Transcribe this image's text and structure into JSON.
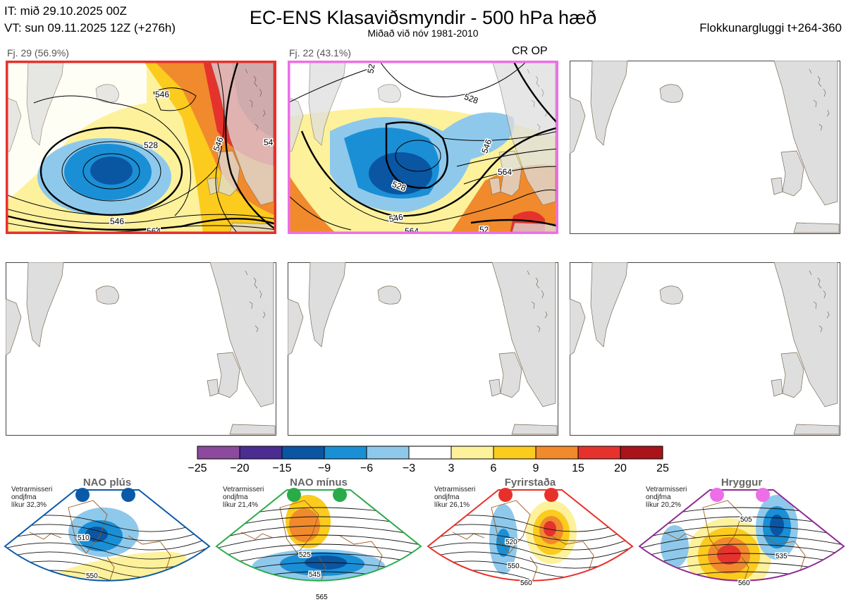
{
  "header": {
    "it": "IT: mið 29.10.2025 00Z",
    "vt": "VT: sun 09.11.2025 12Z  (+276h)",
    "title": "EC-ENS Klasaviðsmyndir - 500 hPa hæð",
    "subtitle": "Miðað við nóv 1981-2010",
    "window": "Flokkunargluggi t+264-360"
  },
  "clusters": [
    {
      "label": "Fj. 29 (56.9%)",
      "border_color": "#e8302a",
      "contours": [
        "546",
        "528",
        "546",
        "54",
        "546",
        "564"
      ]
    },
    {
      "label": "Fj. 22 (43.1%)",
      "border_color": "#ee6ee8",
      "note": "CR OP",
      "contours": [
        "528",
        "546",
        "528",
        "564",
        "546",
        "564",
        "52",
        "52"
      ]
    }
  ],
  "colorbar": {
    "colors": [
      "#8b4a9c",
      "#4b2c91",
      "#0a56a3",
      "#1a8fd6",
      "#8ec9ec",
      "#ffffff",
      "#fdf19c",
      "#fbcb1e",
      "#f08a2c",
      "#e6322c",
      "#a8141a"
    ],
    "ticks": [
      "−25",
      "−20",
      "−15",
      "−9",
      "−6",
      "−3",
      "3",
      "6",
      "9",
      "15",
      "20",
      "25"
    ]
  },
  "regimes": [
    {
      "name": "NAO plús",
      "info": [
        "Vetrarmisseri",
        "ondjfma",
        "líkur 32,3%"
      ],
      "color": "#0a5aa8",
      "contours": [
        "510",
        "550"
      ]
    },
    {
      "name": "NAO mínus",
      "info": [
        "Vetrarmisseri",
        "ondjfma",
        "líkur 21,4%"
      ],
      "color": "#2aab4a",
      "contours": [
        "525",
        "545",
        "565"
      ]
    },
    {
      "name": "Fyrirstaða",
      "info": [
        "Vetrarmisseri",
        "ondjfma",
        "líkur 26,1%"
      ],
      "color": "#e8302a",
      "contours": [
        "520",
        "550",
        "560"
      ]
    },
    {
      "name": "Hryggur",
      "info": [
        "Vetrarmisseri",
        "ondjfma",
        "líkur 20,2%"
      ],
      "color": "#8e2a94",
      "dot_color": "#ee6ee8",
      "contours": [
        "505",
        "535",
        "560"
      ]
    }
  ]
}
